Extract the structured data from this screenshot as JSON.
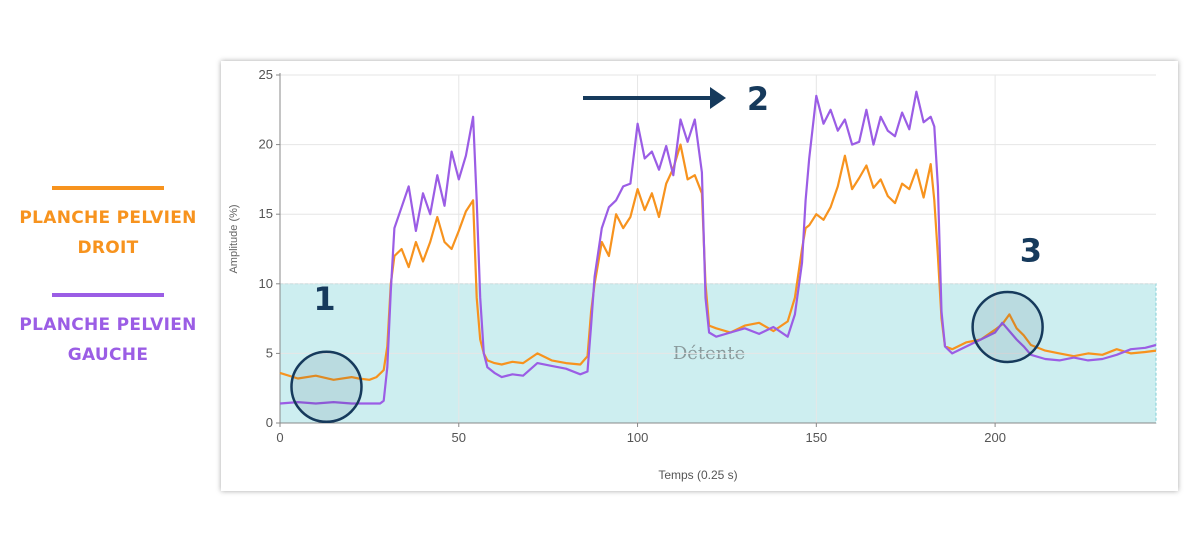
{
  "legend": {
    "items": [
      {
        "label": "PLANCHE PELVIEN\nDROIT",
        "color": "#f7931e"
      },
      {
        "label": "PLANCHE PELVIEN\nGAUCHE",
        "color": "#9b5de5"
      }
    ]
  },
  "annotations": [
    {
      "label": "1",
      "icon": "circle-marker-icon"
    },
    {
      "label": "2",
      "icon": "arrow-right-icon"
    },
    {
      "label": "3",
      "icon": "circle-marker-icon"
    }
  ],
  "colors": {
    "right": "#f7931e",
    "left": "#9b5de5",
    "zone_fill": "#cdeef0",
    "zone_border": "#7fcfd6",
    "annotation": "#163a5c",
    "grid": "#e6e6e6"
  },
  "chart_data": {
    "type": "line",
    "title": "",
    "xlabel": "Temps (0.25 s)",
    "ylabel": "Amplitude (%)",
    "xlim": [
      0,
      245
    ],
    "ylim": [
      0,
      25
    ],
    "xticks": [
      0,
      50,
      100,
      150,
      200
    ],
    "yticks": [
      0,
      5,
      10,
      15,
      20,
      25
    ],
    "grid": true,
    "band": {
      "label": "Détente",
      "y": [
        0,
        10
      ]
    },
    "series": [
      {
        "name": "PLANCHE PELVIEN DROIT",
        "color": "#f7931e",
        "x": [
          0,
          5,
          10,
          15,
          20,
          22,
          25,
          27,
          29,
          30,
          31,
          32,
          34,
          36,
          38,
          40,
          42,
          44,
          46,
          48,
          50,
          52,
          54,
          55,
          56,
          57,
          58,
          60,
          62,
          65,
          68,
          72,
          76,
          80,
          84,
          86,
          87,
          88,
          90,
          92,
          94,
          96,
          98,
          100,
          102,
          104,
          106,
          108,
          110,
          112,
          114,
          116,
          118,
          119,
          120,
          122,
          126,
          130,
          134,
          138,
          142,
          144,
          146,
          147,
          148,
          150,
          152,
          154,
          156,
          158,
          160,
          162,
          164,
          166,
          168,
          170,
          172,
          174,
          176,
          178,
          180,
          182,
          183,
          184,
          185,
          186,
          188,
          192,
          196,
          200,
          202,
          204,
          206,
          208,
          210,
          214,
          218,
          222,
          226,
          230,
          234,
          238,
          242,
          245
        ],
        "values": [
          3.6,
          3.2,
          3.4,
          3.1,
          3.3,
          3.2,
          3.1,
          3.3,
          3.8,
          5.5,
          10.0,
          12.0,
          12.5,
          11.2,
          13.0,
          11.6,
          13.0,
          14.8,
          13.0,
          12.5,
          13.8,
          15.2,
          16.0,
          9.0,
          6.0,
          5.0,
          4.5,
          4.3,
          4.2,
          4.4,
          4.3,
          5.0,
          4.5,
          4.3,
          4.2,
          4.8,
          8.0,
          10.0,
          13.0,
          12.0,
          15.0,
          14.0,
          14.8,
          16.8,
          15.3,
          16.5,
          14.8,
          17.2,
          18.3,
          20.0,
          17.5,
          17.8,
          16.5,
          10.0,
          7.0,
          6.8,
          6.5,
          7.0,
          7.2,
          6.6,
          7.3,
          9.0,
          12.5,
          14.0,
          14.2,
          15.0,
          14.6,
          15.5,
          17.0,
          19.2,
          16.8,
          17.6,
          18.5,
          16.9,
          17.5,
          16.3,
          15.8,
          17.2,
          16.8,
          18.2,
          16.2,
          18.6,
          16.0,
          12.0,
          7.5,
          5.5,
          5.3,
          5.8,
          6.0,
          6.7,
          7.1,
          7.8,
          6.8,
          6.3,
          5.6,
          5.2,
          5.0,
          4.8,
          5.0,
          4.9,
          5.3,
          5.0,
          5.1,
          5.2
        ]
      },
      {
        "name": "PLANCHE PELVIEN GAUCHE",
        "color": "#9b5de5",
        "x": [
          0,
          5,
          10,
          15,
          20,
          25,
          28,
          29,
          30,
          31,
          32,
          34,
          36,
          38,
          40,
          42,
          44,
          46,
          48,
          50,
          52,
          54,
          55,
          56,
          57,
          58,
          60,
          62,
          65,
          68,
          72,
          76,
          80,
          84,
          86,
          87,
          88,
          90,
          92,
          94,
          96,
          98,
          100,
          102,
          104,
          106,
          108,
          110,
          112,
          114,
          116,
          118,
          119,
          120,
          122,
          126,
          130,
          134,
          138,
          142,
          144,
          146,
          147,
          148,
          150,
          152,
          154,
          156,
          158,
          160,
          162,
          164,
          166,
          168,
          170,
          172,
          174,
          176,
          178,
          180,
          182,
          183,
          184,
          185,
          186,
          188,
          192,
          196,
          200,
          202,
          204,
          206,
          208,
          210,
          214,
          218,
          222,
          226,
          230,
          234,
          238,
          242,
          245
        ],
        "values": [
          1.4,
          1.5,
          1.4,
          1.5,
          1.4,
          1.4,
          1.4,
          1.6,
          4.0,
          9.5,
          14.0,
          15.5,
          17.0,
          13.8,
          16.5,
          15.0,
          17.8,
          15.6,
          19.5,
          17.5,
          19.2,
          22.0,
          16.0,
          9.0,
          5.0,
          4.0,
          3.6,
          3.3,
          3.5,
          3.4,
          4.3,
          4.1,
          3.9,
          3.5,
          3.7,
          7.0,
          10.5,
          14.0,
          15.5,
          16.0,
          17.0,
          17.2,
          21.5,
          19.0,
          19.5,
          18.2,
          19.9,
          17.8,
          21.8,
          20.2,
          21.8,
          18.0,
          9.0,
          6.5,
          6.2,
          6.5,
          6.8,
          6.4,
          6.9,
          6.2,
          7.8,
          11.5,
          16.0,
          19.0,
          23.5,
          21.5,
          22.5,
          21.0,
          21.8,
          20.0,
          20.2,
          22.5,
          20.0,
          22.0,
          21.0,
          20.6,
          22.3,
          21.1,
          23.8,
          21.6,
          22.0,
          21.3,
          17.0,
          8.0,
          5.5,
          5.0,
          5.5,
          6.0,
          6.5,
          7.2,
          6.6,
          6.0,
          5.5,
          4.9,
          4.6,
          4.5,
          4.7,
          4.5,
          4.6,
          4.9,
          5.3,
          5.4,
          5.6
        ]
      }
    ]
  }
}
